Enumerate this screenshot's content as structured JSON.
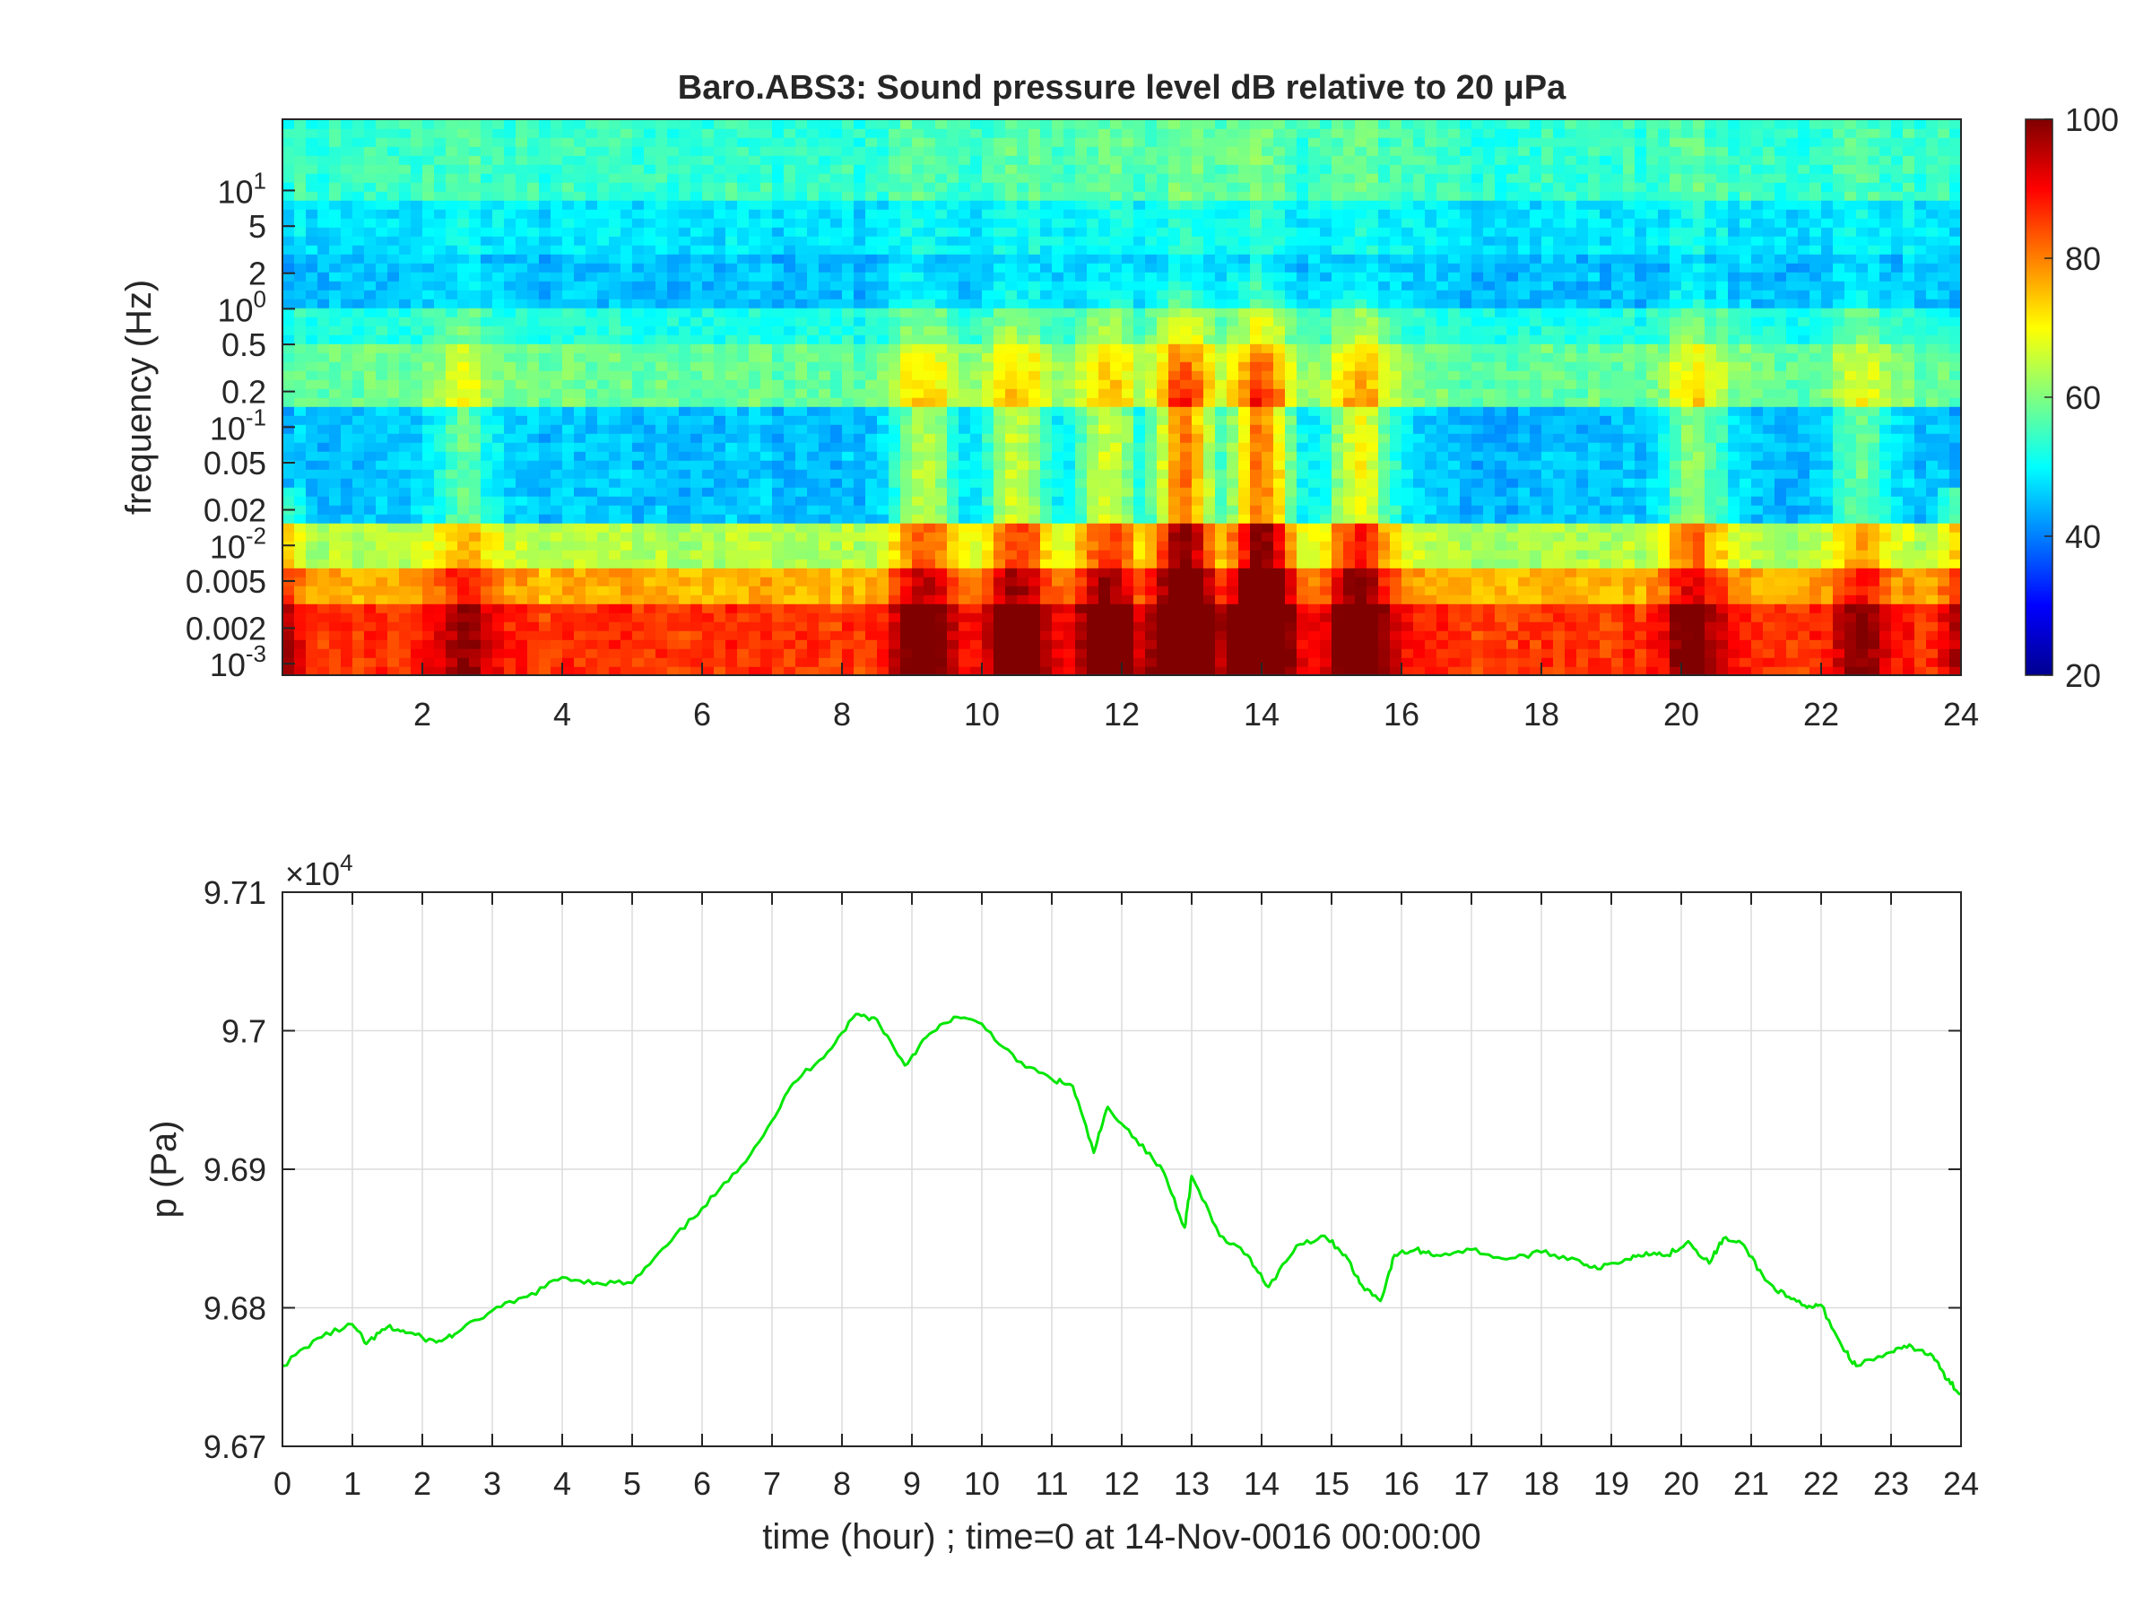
{
  "chart_data": [
    {
      "type": "heatmap",
      "title": "Baro.ABS3: Sound pressure level dB relative to 20 μPa",
      "xlabel": "",
      "ylabel": "frequency (Hz)",
      "xlim": [
        0,
        24
      ],
      "ylim_hz": [
        0.0008,
        40
      ],
      "y_scale": "log",
      "x_ticks": [
        "2",
        "4",
        "6",
        "8",
        "10",
        "12",
        "14",
        "16",
        "18",
        "20",
        "22",
        "24"
      ],
      "y_ticks": [
        {
          "value": 10,
          "base": "10",
          "exp": "1"
        },
        {
          "value": 5,
          "label": "5"
        },
        {
          "value": 2,
          "label": "2"
        },
        {
          "value": 1,
          "base": "10",
          "exp": "0"
        },
        {
          "value": 0.5,
          "label": "0.5"
        },
        {
          "value": 0.2,
          "label": "0.2"
        },
        {
          "value": 0.1,
          "base": "10",
          "exp": "-1"
        },
        {
          "value": 0.05,
          "label": "0.05"
        },
        {
          "value": 0.02,
          "label": "0.02"
        },
        {
          "value": 0.01,
          "base": "10",
          "exp": "-2"
        },
        {
          "value": 0.005,
          "label": "0.005"
        },
        {
          "value": 0.002,
          "label": "0.002"
        },
        {
          "value": 0.001,
          "base": "10",
          "exp": "-3"
        }
      ],
      "colorbar": {
        "colormap": "jet",
        "range_db": [
          20,
          100
        ],
        "ticks": [
          "20",
          "40",
          "60",
          "80",
          "100"
        ]
      },
      "frequency_band_levels_db": [
        {
          "f_low": 8,
          "f_high": 40,
          "db": 54
        },
        {
          "f_low": 3,
          "f_high": 8,
          "db": 48
        },
        {
          "f_low": 1,
          "f_high": 3,
          "db": 45
        },
        {
          "f_low": 0.5,
          "f_high": 1,
          "db": 52
        },
        {
          "f_low": 0.15,
          "f_high": 0.5,
          "db": 58
        },
        {
          "f_low": 0.015,
          "f_high": 0.15,
          "db": 45
        },
        {
          "f_low": 0.007,
          "f_high": 0.015,
          "db": 64
        },
        {
          "f_low": 0.003,
          "f_high": 0.007,
          "db": 76
        },
        {
          "f_low": 0.0008,
          "f_high": 0.003,
          "db": 86
        }
      ],
      "activity_peaks": [
        {
          "hour": 2.6,
          "level": 0.35
        },
        {
          "hour": 9.2,
          "level": 0.55
        },
        {
          "hour": 10.5,
          "level": 0.6
        },
        {
          "hour": 11.8,
          "level": 0.6
        },
        {
          "hour": 12.9,
          "level": 1.0
        },
        {
          "hour": 14.0,
          "level": 1.0
        },
        {
          "hour": 15.4,
          "level": 0.7
        },
        {
          "hour": 20.2,
          "level": 0.45
        },
        {
          "hour": 22.6,
          "level": 0.35
        }
      ]
    },
    {
      "type": "line",
      "xlabel": "time (hour) ; time=0 at 14-Nov-0016 00:00:00",
      "ylabel": "p (Pa)",
      "y_multiplier": {
        "base": "×10",
        "exp": "4"
      },
      "xlim": [
        0,
        24
      ],
      "ylim": [
        9.67,
        9.71
      ],
      "grid": true,
      "x_ticks": [
        "0",
        "1",
        "2",
        "3",
        "4",
        "5",
        "6",
        "7",
        "8",
        "9",
        "10",
        "11",
        "12",
        "13",
        "14",
        "15",
        "16",
        "17",
        "18",
        "19",
        "20",
        "21",
        "22",
        "23",
        "24"
      ],
      "y_ticks": [
        {
          "value": 9.67,
          "label": "9.67"
        },
        {
          "value": 9.68,
          "label": "9.68"
        },
        {
          "value": 9.69,
          "label": "9.69"
        },
        {
          "value": 9.7,
          "label": "9.7"
        },
        {
          "value": 9.71,
          "label": "9.71"
        }
      ],
      "line_color": "#00e600",
      "series": [
        {
          "x": [
            0,
            0.5,
            1.0,
            1.2,
            1.5,
            1.8,
            2.2,
            2.5,
            3.0,
            3.5,
            4.0,
            4.5,
            5.0,
            5.5,
            6.0,
            6.5,
            7.0,
            7.3,
            7.8,
            8.2,
            8.5,
            8.9,
            9.2,
            9.6,
            10.0,
            10.5,
            11.0,
            11.3,
            11.6,
            11.8,
            12.2,
            12.6,
            12.9,
            13.0,
            13.4,
            13.8,
            14.1,
            14.5,
            14.9,
            15.2,
            15.4,
            15.7,
            15.9,
            16.2,
            16.5,
            17.0,
            17.5,
            18.0,
            18.5,
            18.8,
            19.2,
            19.5,
            19.8,
            20.1,
            20.4,
            20.6,
            20.9,
            21.2,
            21.5,
            21.8,
            22.0,
            22.3,
            22.5,
            23.0,
            23.3,
            23.6,
            23.8,
            24.0
          ],
          "y": [
            9.6758,
            9.6778,
            9.6788,
            9.6774,
            9.6786,
            9.6782,
            9.6775,
            9.6782,
            9.6798,
            9.6808,
            9.6822,
            9.6818,
            9.6818,
            9.6845,
            9.6872,
            9.6898,
            9.6935,
            9.6962,
            9.6985,
            9.7012,
            9.7008,
            9.6975,
            9.6995,
            9.701,
            9.7005,
            9.6978,
            9.6965,
            9.696,
            9.6912,
            9.6945,
            9.6922,
            9.6898,
            9.6858,
            9.6895,
            9.6852,
            9.6838,
            9.6815,
            9.6845,
            9.6852,
            9.6838,
            9.6818,
            9.6805,
            9.6838,
            9.6842,
            9.6838,
            9.6842,
            9.6835,
            9.684,
            9.6835,
            9.6828,
            9.6835,
            9.684,
            9.6838,
            9.6848,
            9.6832,
            9.685,
            9.6845,
            9.682,
            9.6808,
            9.68,
            9.6802,
            9.6772,
            9.6758,
            9.6768,
            9.6772,
            9.6765,
            9.6748,
            9.6738
          ]
        }
      ]
    }
  ]
}
